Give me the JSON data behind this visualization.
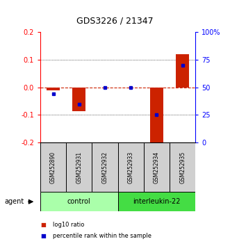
{
  "title": "GDS3226 / 21347",
  "samples": [
    "GSM252890",
    "GSM252931",
    "GSM252932",
    "GSM252933",
    "GSM252934",
    "GSM252935"
  ],
  "log10_ratio": [
    -0.012,
    -0.085,
    0.0,
    0.0,
    -0.2,
    0.12
  ],
  "percentile_rank": [
    44,
    35,
    50,
    50,
    25,
    70
  ],
  "ylim_left": [
    -0.2,
    0.2
  ],
  "ylim_right": [
    0,
    100
  ],
  "yticks_left": [
    -0.2,
    -0.1,
    0.0,
    0.1,
    0.2
  ],
  "yticks_right": [
    0,
    25,
    50,
    75,
    100
  ],
  "ytick_labels_right": [
    "0",
    "25",
    "50",
    "75",
    "100%"
  ],
  "groups": [
    {
      "label": "control",
      "indices": [
        0,
        1,
        2
      ],
      "color": "#aaffaa"
    },
    {
      "label": "interleukin-22",
      "indices": [
        3,
        4,
        5
      ],
      "color": "#44dd44"
    }
  ],
  "bar_color": "#CC2200",
  "percentile_color": "#0000CC",
  "bar_width": 0.5,
  "background_label": "#D0D0D0",
  "zero_line_color": "#CC2200",
  "legend_red_label": "log10 ratio",
  "legend_blue_label": "percentile rank within the sample"
}
